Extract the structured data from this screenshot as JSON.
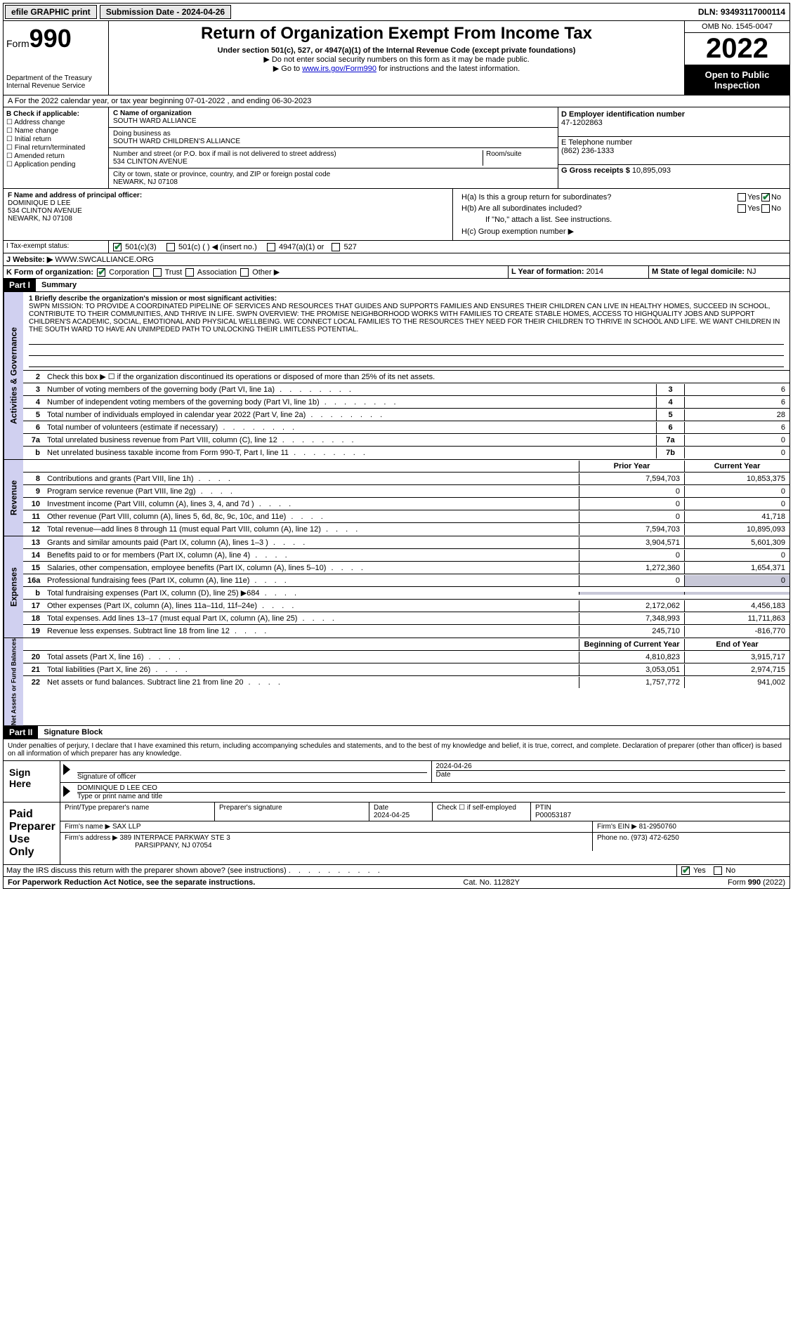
{
  "topbar": {
    "efile": "efile GRAPHIC print",
    "submission_label": "Submission Date - 2024-04-26",
    "dln_label": "DLN: 93493117000114"
  },
  "header": {
    "form_prefix": "Form",
    "form_num": "990",
    "dept1": "Department of the Treasury",
    "dept2": "Internal Revenue Service",
    "title": "Return of Organization Exempt From Income Tax",
    "sub1": "Under section 501(c), 527, or 4947(a)(1) of the Internal Revenue Code (except private foundations)",
    "sub2": "▶ Do not enter social security numbers on this form as it may be made public.",
    "sub3_pre": "▶ Go to ",
    "sub3_link": "www.irs.gov/Form990",
    "sub3_post": " for instructions and the latest information.",
    "omb": "OMB No. 1545-0047",
    "year": "2022",
    "open_pub": "Open to Public Inspection"
  },
  "row_a": "A For the 2022 calendar year, or tax year beginning 07-01-2022   , and ending 06-30-2023",
  "col_b": {
    "title": "B Check if applicable:",
    "items": [
      "Address change",
      "Name change",
      "Initial return",
      "Final return/terminated",
      "Amended return",
      "Application pending"
    ]
  },
  "org": {
    "c_label": "C Name of organization",
    "name": "SOUTH WARD ALLIANCE",
    "dba_label": "Doing business as",
    "dba": "SOUTH WARD CHILDREN'S ALLIANCE",
    "addr_label": "Number and street (or P.O. box if mail is not delivered to street address)",
    "room_label": "Room/suite",
    "addr": "534 CLINTON AVENUE",
    "city_label": "City or town, state or province, country, and ZIP or foreign postal code",
    "city": "NEWARK, NJ  07108"
  },
  "col_d": {
    "ein_label": "D Employer identification number",
    "ein": "47-1202863",
    "phone_label": "E Telephone number",
    "phone": "(862) 236-1333",
    "gross_label": "G Gross receipts $ ",
    "gross": "10,895,093"
  },
  "f": {
    "label": "F  Name and address of principal officer:",
    "name": "DOMINIQUE D LEE",
    "addr1": "534 CLINTON AVENUE",
    "addr2": "NEWARK, NJ  07108"
  },
  "h": {
    "ha": "H(a)  Is this a group return for subordinates?",
    "hb": "H(b)  Are all subordinates included?",
    "hb_note": "If \"No,\" attach a list. See instructions.",
    "hc": "H(c)  Group exemption number ▶",
    "yes": "Yes",
    "no": "No"
  },
  "i": {
    "label": "I  Tax-exempt status:",
    "o1": "501(c)(3)",
    "o2": "501(c) (   ) ◀ (insert no.)",
    "o3": "4947(a)(1) or",
    "o4": "527"
  },
  "j": {
    "label": "J Website: ▶ ",
    "url": "WWW.SWCALLIANCE.ORG"
  },
  "k": {
    "label": "K Form of organization:",
    "o1": "Corporation",
    "o2": "Trust",
    "o3": "Association",
    "o4": "Other ▶"
  },
  "l": {
    "label": "L Year of formation: ",
    "val": "2014"
  },
  "m": {
    "label": "M State of legal domicile: ",
    "val": "NJ"
  },
  "part1": {
    "bar": "Part I",
    "title": "Summary",
    "mission_label": "1   Briefly describe the organization's mission or most significant activities:",
    "mission": "SWPN MISSION: TO PROVIDE A COORDINATED PIPELINE OF SERVICES AND RESOURCES THAT GUIDES AND SUPPORTS FAMILIES AND ENSURES THEIR CHILDREN CAN LIVE IN HEALTHY HOMES, SUCCEED IN SCHOOL, CONTRIBUTE TO THEIR COMMUNITIES, AND THRIVE IN LIFE. SWPN OVERVIEW: THE PROMISE NEIGHBORHOOD WORKS WITH FAMILIES TO CREATE STABLE HOMES, ACCESS TO HIGHQUALITY JOBS AND SUPPORT CHILDREN'S ACADEMIC, SOCIAL, EMOTIONAL AND PHYSICAL WELLBEING. WE CONNECT LOCAL FAMILIES TO THE RESOURCES THEY NEED FOR THEIR CHILDREN TO THRIVE IN SCHOOL AND LIFE. WE WANT CHILDREN IN THE SOUTH WARD TO HAVE AN UNIMPEDED PATH TO UNLOCKING THEIR LIMITLESS POTENTIAL.",
    "l2": "Check this box ▶ ☐  if the organization discontinued its operations or disposed of more than 25% of its net assets.",
    "rows_gov": [
      {
        "n": "3",
        "d": "Number of voting members of the governing body (Part VI, line 1a)",
        "box": "3",
        "v": "6"
      },
      {
        "n": "4",
        "d": "Number of independent voting members of the governing body (Part VI, line 1b)",
        "box": "4",
        "v": "6"
      },
      {
        "n": "5",
        "d": "Total number of individuals employed in calendar year 2022 (Part V, line 2a)",
        "box": "5",
        "v": "28"
      },
      {
        "n": "6",
        "d": "Total number of volunteers (estimate if necessary)",
        "box": "6",
        "v": "6"
      },
      {
        "n": "7a",
        "d": "Total unrelated business revenue from Part VIII, column (C), line 12",
        "box": "7a",
        "v": "0"
      },
      {
        "n": "b",
        "d": "Net unrelated business taxable income from Form 990-T, Part I, line 11",
        "box": "7b",
        "v": "0"
      }
    ],
    "col_prior": "Prior Year",
    "col_current": "Current Year",
    "rows_rev": [
      {
        "n": "8",
        "d": "Contributions and grants (Part VIII, line 1h)",
        "p": "7,594,703",
        "c": "10,853,375"
      },
      {
        "n": "9",
        "d": "Program service revenue (Part VIII, line 2g)",
        "p": "0",
        "c": "0"
      },
      {
        "n": "10",
        "d": "Investment income (Part VIII, column (A), lines 3, 4, and 7d )",
        "p": "0",
        "c": "0"
      },
      {
        "n": "11",
        "d": "Other revenue (Part VIII, column (A), lines 5, 6d, 8c, 9c, 10c, and 11e)",
        "p": "0",
        "c": "41,718"
      },
      {
        "n": "12",
        "d": "Total revenue—add lines 8 through 11 (must equal Part VIII, column (A), line 12)",
        "p": "7,594,703",
        "c": "10,895,093"
      }
    ],
    "rows_exp": [
      {
        "n": "13",
        "d": "Grants and similar amounts paid (Part IX, column (A), lines 1–3 )",
        "p": "3,904,571",
        "c": "5,601,309"
      },
      {
        "n": "14",
        "d": "Benefits paid to or for members (Part IX, column (A), line 4)",
        "p": "0",
        "c": "0"
      },
      {
        "n": "15",
        "d": "Salaries, other compensation, employee benefits (Part IX, column (A), lines 5–10)",
        "p": "1,272,360",
        "c": "1,654,371"
      },
      {
        "n": "16a",
        "d": "Professional fundraising fees (Part IX, column (A), line 11e)",
        "p": "0",
        "c": "0",
        "shade_c": true
      },
      {
        "n": "b",
        "d": "Total fundraising expenses (Part IX, column (D), line 25) ▶684",
        "p": "",
        "c": "",
        "shade_p": true,
        "shade_c": true
      },
      {
        "n": "17",
        "d": "Other expenses (Part IX, column (A), lines 11a–11d, 11f–24e)",
        "p": "2,172,062",
        "c": "4,456,183"
      },
      {
        "n": "18",
        "d": "Total expenses. Add lines 13–17 (must equal Part IX, column (A), line 25)",
        "p": "7,348,993",
        "c": "11,711,863"
      },
      {
        "n": "19",
        "d": "Revenue less expenses. Subtract line 18 from line 12",
        "p": "245,710",
        "c": "-816,770"
      }
    ],
    "col_begin": "Beginning of Current Year",
    "col_end": "End of Year",
    "rows_net": [
      {
        "n": "20",
        "d": "Total assets (Part X, line 16)",
        "p": "4,810,823",
        "c": "3,915,717"
      },
      {
        "n": "21",
        "d": "Total liabilities (Part X, line 26)",
        "p": "3,053,051",
        "c": "2,974,715"
      },
      {
        "n": "22",
        "d": "Net assets or fund balances. Subtract line 21 from line 20",
        "p": "1,757,772",
        "c": "941,002"
      }
    ]
  },
  "part2": {
    "bar": "Part II",
    "title": "Signature Block",
    "penalty": "Under penalties of perjury, I declare that I have examined this return, including accompanying schedules and statements, and to the best of my knowledge and belief, it is true, correct, and complete. Declaration of preparer (other than officer) is based on all information of which preparer has any knowledge.",
    "sign_here": "Sign Here",
    "sig_off": "Signature of officer",
    "sig_date_lbl": "Date",
    "sig_date": "2024-04-26",
    "officer": "DOMINIQUE D LEE CEO",
    "officer_lbl": "Type or print name and title",
    "paid": "Paid Preparer Use Only",
    "prep_name_lbl": "Print/Type preparer's name",
    "prep_sig_lbl": "Preparer's signature",
    "prep_date_lbl": "Date",
    "prep_date": "2024-04-25",
    "self_emp": "Check ☐ if self-employed",
    "ptin_lbl": "PTIN",
    "ptin": "P00053187",
    "firm_name_lbl": "Firm's name     ▶ ",
    "firm_name": "SAX LLP",
    "firm_ein_lbl": "Firm's EIN ▶ ",
    "firm_ein": "81-2950760",
    "firm_addr_lbl": "Firm's address ▶ ",
    "firm_addr1": "389 INTERPACE PARKWAY STE 3",
    "firm_addr2": "PARSIPPANY, NJ  07054",
    "firm_phone_lbl": "Phone no. ",
    "firm_phone": "(973) 472-6250",
    "discuss": "May the IRS discuss this return with the preparer shown above? (see instructions)"
  },
  "footer": {
    "pra": "For Paperwork Reduction Act Notice, see the separate instructions.",
    "cat": "Cat. No. 11282Y",
    "form": "Form 990 (2022)"
  },
  "tabs": {
    "gov": "Activities & Governance",
    "rev": "Revenue",
    "exp": "Expenses",
    "net": "Net Assets or Fund Balances"
  }
}
